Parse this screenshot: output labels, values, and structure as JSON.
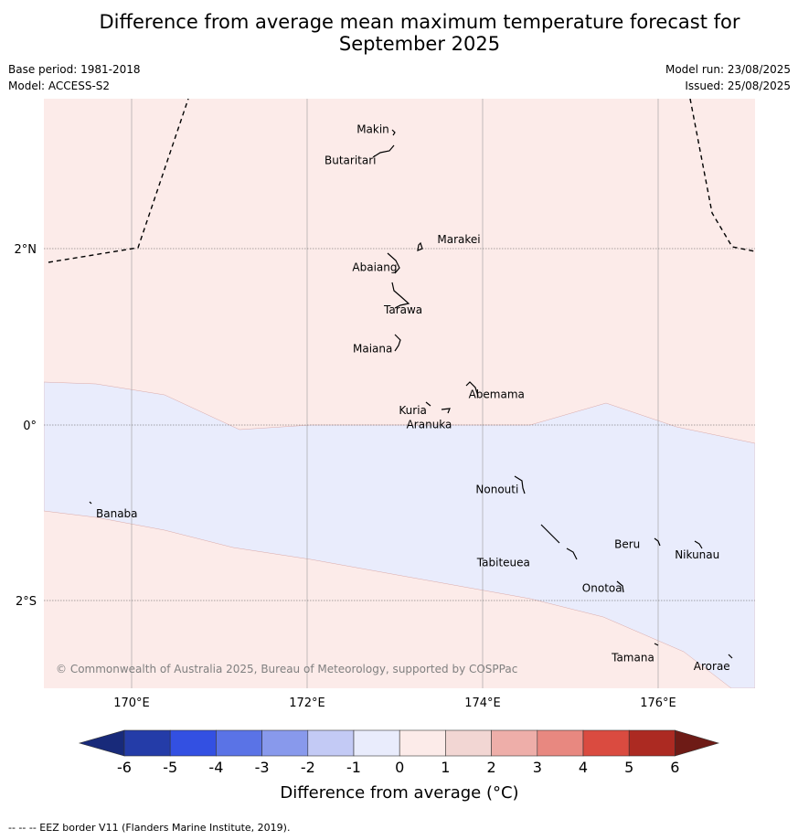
{
  "title_line1": "Difference from average mean maximum temperature forecast for",
  "title_line2": "September 2025",
  "meta_left": [
    "Base period: 1981-2018",
    "Model: ACCESS-S2"
  ],
  "meta_right": [
    "Model run: 23/08/2025",
    "Issued: 25/08/2025"
  ],
  "lat_labels": [
    "2°N",
    "0°",
    "2°S"
  ],
  "lon_labels": [
    "170°E",
    "172°E",
    "174°E",
    "176°E"
  ],
  "places": [
    {
      "name": "Makin",
      "lon": 172.95,
      "lat": 3.35
    },
    {
      "name": "Butaritari",
      "lon": 172.75,
      "lat": 3.05
    },
    {
      "name": "Marakei",
      "lon": 173.4,
      "lat": 2.0
    },
    {
      "name": "Abaiang",
      "lon": 172.9,
      "lat": 1.85
    },
    {
      "name": "Tarawa",
      "lon": 173.0,
      "lat": 1.4
    },
    {
      "name": "Maiana",
      "lon": 173.0,
      "lat": 0.95
    },
    {
      "name": "Abemama",
      "lon": 173.85,
      "lat": 0.4
    },
    {
      "name": "Kuria",
      "lon": 173.4,
      "lat": 0.22
    },
    {
      "name": "Aranuka",
      "lon": 173.6,
      "lat": 0.17
    },
    {
      "name": "Nonouti",
      "lon": 174.4,
      "lat": -0.68
    },
    {
      "name": "Banaba",
      "lon": 169.5,
      "lat": -0.87
    },
    {
      "name": "Tabiteuea",
      "lon": 174.8,
      "lat": -1.3
    },
    {
      "name": "Beru",
      "lon": 175.98,
      "lat": -1.32
    },
    {
      "name": "Nikunau",
      "lon": 176.45,
      "lat": -1.36
    },
    {
      "name": "Onotoa",
      "lon": 175.55,
      "lat": -1.8
    },
    {
      "name": "Tamana",
      "lon": 175.97,
      "lat": -2.5
    },
    {
      "name": "Arorae",
      "lon": 176.8,
      "lat": -2.64
    }
  ],
  "copyright": "© Commonwealth of Australia 2025, Bureau of Meteorology, supported by COSPPac",
  "colorbar": {
    "ticks": [
      "-6",
      "-5",
      "-4",
      "-3",
      "-2",
      "-1",
      "0",
      "1",
      "2",
      "3",
      "4",
      "5",
      "6"
    ],
    "colors": [
      "#243ca8",
      "#3350e2",
      "#5a73e6",
      "#8899ec",
      "#c3caf5",
      "#e9ecfc",
      "#fcebe9",
      "#f2d6d3",
      "#eeaea9",
      "#e88880",
      "#da4b40",
      "#ac2a22"
    ],
    "under_color": "#182a7a",
    "over_color": "#6e1b16",
    "label": "Difference from average ($^\\circ$C)",
    "label_display": "Difference from average (°C)"
  },
  "regions": {
    "warm_color": "#fcebe9",
    "cool_color": "#e9ecfc"
  },
  "footnote": "--  --  -- EEZ border V11 (Flanders Marine Institute, 2019)."
}
